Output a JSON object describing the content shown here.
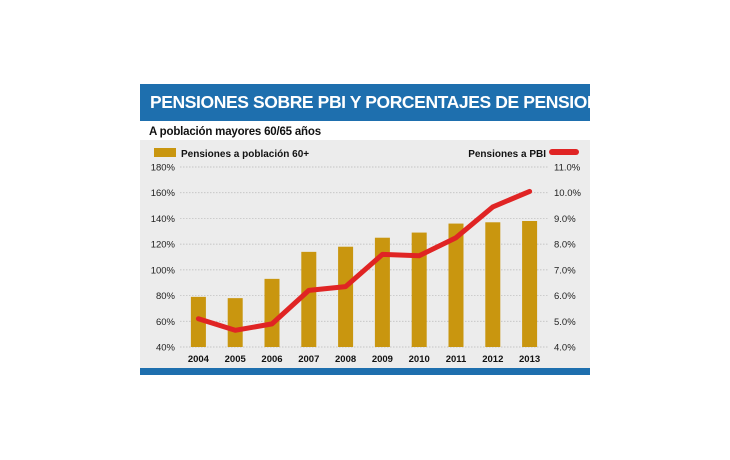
{
  "header": {
    "title": "PENSIONES SOBRE PBI Y PORCENTAJES DE PENSIONES",
    "subtitle": "A población mayores 60/65 años"
  },
  "colors": {
    "header_bg": "#1e6fae",
    "panel_bg": "#ececec",
    "bar": "#c9960f",
    "line": "#e02424"
  },
  "chart_data": {
    "type": "bar",
    "categories": [
      "2004",
      "2005",
      "2006",
      "2007",
      "2008",
      "2009",
      "2010",
      "2011",
      "2012",
      "2013"
    ],
    "series": [
      {
        "name": "Pensiones a población 60+",
        "type": "bar",
        "axis": "left",
        "values": [
          79,
          78,
          93,
          114,
          118,
          125,
          129,
          136,
          137,
          138
        ]
      },
      {
        "name": "Pensiones a PBI",
        "type": "line",
        "axis": "right",
        "values": [
          5.1,
          4.65,
          4.9,
          6.2,
          6.35,
          7.6,
          7.55,
          8.25,
          9.45,
          10.05
        ]
      }
    ],
    "y_left": {
      "ylim": [
        40,
        180
      ],
      "ticks": [
        40,
        60,
        80,
        100,
        120,
        140,
        160,
        180
      ],
      "tick_labels": [
        "40%",
        "60%",
        "80%",
        "100%",
        "120%",
        "140%",
        "160%",
        "180%"
      ]
    },
    "y_right": {
      "ylim": [
        4.0,
        11.0
      ],
      "ticks": [
        4,
        5,
        6,
        7,
        8,
        9,
        10,
        11
      ],
      "tick_labels": [
        "4.0%",
        "5.0%",
        "6.0%",
        "7.0%",
        "8.0%",
        "9.0%",
        "10.0%",
        "11.0%"
      ]
    },
    "grid": true,
    "legend": [
      {
        "label": "Pensiones a población 60+",
        "position": "top-left"
      },
      {
        "label": "Pensiones a PBI",
        "position": "top-right"
      }
    ]
  }
}
